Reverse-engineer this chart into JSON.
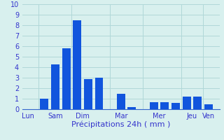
{
  "bars": [
    {
      "x": 1.0,
      "height": 1.0
    },
    {
      "x": 1.5,
      "height": 4.3
    },
    {
      "x": 2.0,
      "height": 5.8
    },
    {
      "x": 2.5,
      "height": 8.5
    },
    {
      "x": 3.0,
      "height": 2.9
    },
    {
      "x": 3.5,
      "height": 3.0
    },
    {
      "x": 4.5,
      "height": 1.5
    },
    {
      "x": 5.0,
      "height": 0.2
    },
    {
      "x": 6.0,
      "height": 0.7
    },
    {
      "x": 6.5,
      "height": 0.7
    },
    {
      "x": 7.0,
      "height": 0.6
    },
    {
      "x": 7.5,
      "height": 1.2
    },
    {
      "x": 8.0,
      "height": 1.2
    },
    {
      "x": 8.5,
      "height": 0.5
    }
  ],
  "bar_color": "#1155dd",
  "bar_width": 0.38,
  "background_color": "#d8f0ee",
  "grid_color": "#b0d8d8",
  "axis_color": "#3366cc",
  "tick_color": "#3333cc",
  "label_color": "#3333cc",
  "xlabel": "Précipitations 24h ( mm )",
  "xlabel_fontsize": 8,
  "ylim": [
    0,
    10
  ],
  "yticks": [
    0,
    1,
    2,
    3,
    4,
    5,
    6,
    7,
    8,
    9,
    10
  ],
  "ytick_fontsize": 7,
  "xtick_fontsize": 7,
  "day_labels": [
    "Lun",
    "Sam",
    "Dim",
    "Mar",
    "Mer",
    "Jeu",
    "Ven"
  ],
  "day_positions": [
    0.25,
    1.5,
    2.75,
    4.5,
    6.25,
    7.75,
    8.5
  ],
  "vline_positions": [
    0.75,
    2.25,
    4.0,
    5.5,
    7.25,
    8.25
  ],
  "xlim": [
    0.0,
    9.0
  ]
}
